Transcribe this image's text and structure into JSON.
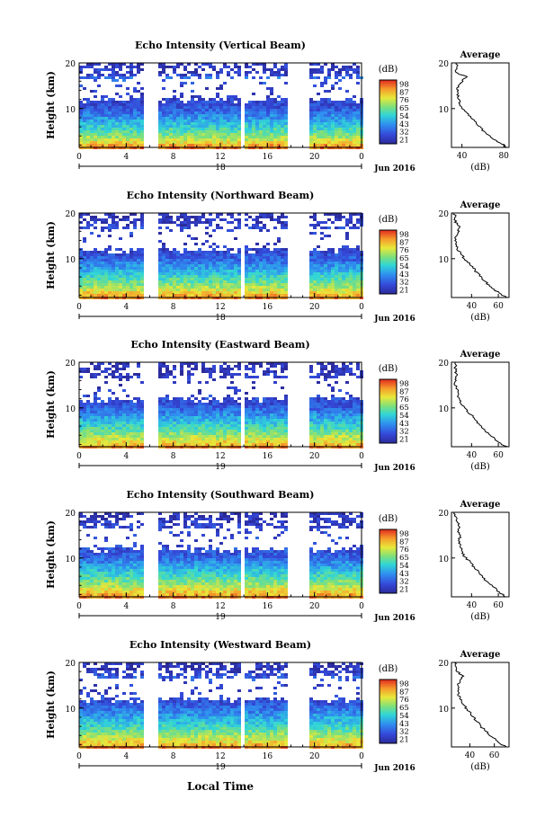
{
  "figure": {
    "x_axis_title": "Local Time",
    "colorbar_unit": "(dB)",
    "avg_title": "Average",
    "avg_xlabel": "(dB)",
    "ylabel": "Height (km)"
  },
  "chart_data": [
    {
      "type": "heatmap",
      "title": "Echo Intensity (Vertical Beam)",
      "xlabel": "",
      "ylabel": "Height (km)",
      "x_ticks": [
        "0",
        "4",
        "8",
        "12",
        "16",
        "20",
        "0"
      ],
      "y_ticks": [
        "10",
        "20"
      ],
      "date_label": "18",
      "month_label": "Jun 2016",
      "xlim": [
        0,
        24
      ],
      "ylim": [
        1.5,
        20
      ],
      "data_gaps_hours": [
        [
          5.5,
          6.5
        ],
        [
          13.5,
          13.9
        ],
        [
          17.6,
          19.4
        ]
      ],
      "colorbar": {
        "ticks": [
          "98",
          "87",
          "76",
          "65",
          "54",
          "43",
          "32",
          "21"
        ],
        "range": [
          21,
          98
        ]
      },
      "average_profile": {
        "xlim": [
          30,
          85
        ],
        "x_ticks": [
          "40",
          "80"
        ],
        "y_ticks": [
          "10",
          "20"
        ],
        "height_km": [
          1.5,
          2,
          3,
          4,
          5,
          6,
          7,
          8,
          9,
          10,
          11,
          12,
          13,
          14,
          15,
          16,
          17,
          17.5,
          18,
          19,
          20
        ],
        "echo_db": [
          83,
          80,
          72,
          66,
          61,
          57,
          53,
          49,
          45,
          41,
          38,
          37,
          36,
          36,
          36,
          40,
          44,
          38,
          34,
          36,
          34
        ]
      }
    },
    {
      "type": "heatmap",
      "title": "Echo Intensity (Northward Beam)",
      "xlabel": "",
      "ylabel": "Height (km)",
      "x_ticks": [
        "0",
        "4",
        "8",
        "12",
        "16",
        "20",
        "0"
      ],
      "y_ticks": [
        "10",
        "20"
      ],
      "date_label": "18",
      "month_label": "Jun 2016",
      "xlim": [
        0,
        24
      ],
      "ylim": [
        1.5,
        20
      ],
      "data_gaps_hours": [
        [
          5.5,
          6.5
        ],
        [
          13.5,
          13.9
        ],
        [
          17.6,
          19.4
        ]
      ],
      "colorbar": {
        "ticks": [
          "98",
          "87",
          "76",
          "65",
          "54",
          "43",
          "32",
          "21"
        ],
        "range": [
          21,
          98
        ]
      },
      "average_profile": {
        "xlim": [
          25,
          68
        ],
        "x_ticks": [
          "40",
          "60"
        ],
        "y_ticks": [
          "10",
          "20"
        ],
        "height_km": [
          1.5,
          2,
          3,
          4,
          5,
          6,
          7,
          8,
          9,
          10,
          11,
          12,
          13,
          14,
          15,
          16,
          17,
          18,
          19,
          20
        ],
        "echo_db": [
          66,
          63,
          58,
          54,
          50,
          47,
          44,
          41,
          38,
          35,
          32,
          30,
          29,
          28,
          28,
          30,
          31,
          28,
          28,
          27
        ]
      }
    },
    {
      "type": "heatmap",
      "title": "Echo Intensity (Eastward Beam)",
      "xlabel": "",
      "ylabel": "Height (km)",
      "x_ticks": [
        "0",
        "4",
        "8",
        "12",
        "16",
        "20",
        "0"
      ],
      "y_ticks": [
        "10",
        "20"
      ],
      "date_label": "19",
      "month_label": "Jun 2016",
      "xlim": [
        0,
        24
      ],
      "ylim": [
        1.5,
        20
      ],
      "data_gaps_hours": [
        [
          5.5,
          6.5
        ],
        [
          13.5,
          13.9
        ],
        [
          17.6,
          19.4
        ]
      ],
      "colorbar": {
        "ticks": [
          "98",
          "87",
          "76",
          "65",
          "54",
          "43",
          "32",
          "21"
        ],
        "range": [
          21,
          98
        ]
      },
      "average_profile": {
        "xlim": [
          25,
          68
        ],
        "x_ticks": [
          "40",
          "60"
        ],
        "y_ticks": [
          "10",
          "20"
        ],
        "height_km": [
          1.5,
          2,
          3,
          4,
          5,
          6,
          7,
          8,
          9,
          10,
          11,
          12,
          13,
          14,
          15,
          16,
          17,
          18,
          19,
          20
        ],
        "echo_db": [
          66,
          62,
          58,
          54,
          50,
          47,
          44,
          41,
          38,
          35,
          32,
          31,
          30,
          29,
          28,
          28,
          29,
          28,
          28,
          27
        ]
      }
    },
    {
      "type": "heatmap",
      "title": "Echo Intensity (Southward Beam)",
      "xlabel": "",
      "ylabel": "Height (km)",
      "x_ticks": [
        "0",
        "4",
        "8",
        "12",
        "16",
        "20",
        "0"
      ],
      "y_ticks": [
        "10",
        "20"
      ],
      "date_label": "19",
      "month_label": "Jun 2016",
      "xlim": [
        0,
        24
      ],
      "ylim": [
        1.5,
        20
      ],
      "data_gaps_hours": [
        [
          5.5,
          6.5
        ],
        [
          13.5,
          13.9
        ],
        [
          17.6,
          19.4
        ]
      ],
      "colorbar": {
        "ticks": [
          "98",
          "87",
          "76",
          "65",
          "54",
          "43",
          "32",
          "21"
        ],
        "range": [
          21,
          98
        ]
      },
      "average_profile": {
        "xlim": [
          25,
          68
        ],
        "x_ticks": [
          "40",
          "60"
        ],
        "y_ticks": [
          "10",
          "20"
        ],
        "height_km": [
          1.5,
          2,
          3,
          4,
          5,
          6,
          7,
          8,
          9,
          10,
          11,
          12,
          13,
          14,
          15,
          16,
          17,
          18,
          19,
          20
        ],
        "echo_db": [
          66,
          63,
          59,
          55,
          51,
          48,
          45,
          42,
          39,
          36,
          33,
          32,
          31,
          31,
          32,
          30,
          31,
          29,
          28,
          27
        ]
      }
    },
    {
      "type": "heatmap",
      "title": "Echo Intensity (Westward Beam)",
      "xlabel": "Local Time",
      "ylabel": "Height (km)",
      "x_ticks": [
        "0",
        "4",
        "8",
        "12",
        "16",
        "20",
        "0"
      ],
      "y_ticks": [
        "10",
        "20"
      ],
      "date_label": "19",
      "month_label": "Jun 2016",
      "xlim": [
        0,
        24
      ],
      "ylim": [
        1.5,
        20
      ],
      "data_gaps_hours": [
        [
          5.5,
          6.5
        ],
        [
          13.5,
          13.9
        ],
        [
          17.6,
          19.4
        ]
      ],
      "colorbar": {
        "ticks": [
          "98",
          "87",
          "76",
          "65",
          "54",
          "43",
          "32",
          "21"
        ],
        "range": [
          21,
          98
        ]
      },
      "average_profile": {
        "xlim": [
          25,
          72
        ],
        "x_ticks": [
          "40",
          "60"
        ],
        "y_ticks": [
          "10",
          "20"
        ],
        "height_km": [
          1.5,
          2,
          3,
          4,
          5,
          6,
          7,
          8,
          9,
          10,
          11,
          12,
          13,
          14,
          15,
          16,
          17,
          18,
          19,
          20
        ],
        "echo_db": [
          70,
          66,
          61,
          57,
          53,
          49,
          46,
          43,
          40,
          37,
          34,
          32,
          31,
          30,
          30,
          32,
          34,
          30,
          28,
          28
        ]
      }
    }
  ]
}
